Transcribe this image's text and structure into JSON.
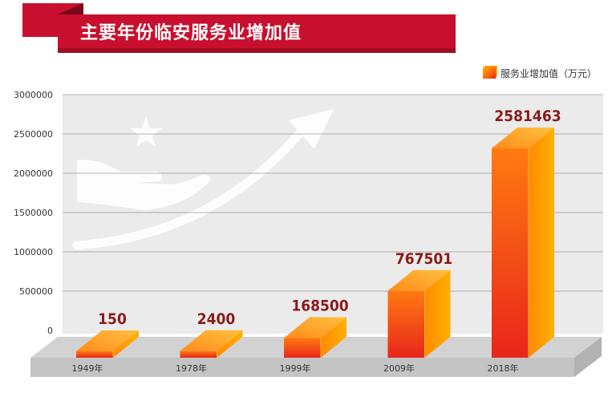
{
  "page_title": "主要年份临安服务业增加值",
  "colors": {
    "banner_red": "#c8102e",
    "banner_dark": "#9e0b1f",
    "plot_bg": "#ebebeb",
    "bar_front_top": "#ff7a10",
    "bar_front_bottom": "#e8251c",
    "bar_top": "#ffa62a",
    "bar_side": "#ff9400",
    "value_label": "#8b1a1a"
  },
  "chart_data": {
    "type": "bar",
    "title": "主要年份临安服务业增加值",
    "categories": [
      "1949年",
      "1978年",
      "1999年",
      "2009年",
      "2018年"
    ],
    "series": [
      {
        "name": "服务业增加值（万元）",
        "values": [
          150,
          2400,
          168500,
          767501,
          2581463
        ]
      }
    ],
    "data_labels": [
      "150",
      "2400",
      "168500",
      "767501",
      "2581463"
    ],
    "y_ticks": [
      "3000000",
      "2500000",
      "2000000",
      "1500000",
      "1000000",
      "500000",
      "0"
    ],
    "ylim": [
      0,
      3000000
    ],
    "grid": true,
    "legend_position": "top-right",
    "style": "3d-bar"
  }
}
